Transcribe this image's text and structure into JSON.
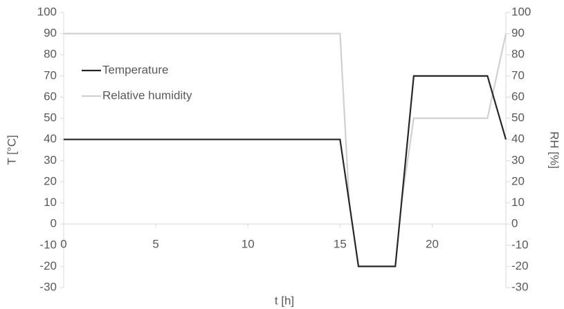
{
  "chart_data": {
    "type": "line",
    "x_label": "t [h]",
    "y_label": "T [°C]",
    "y2_label": "RH [%]",
    "xlim": [
      0,
      24
    ],
    "xticks": [
      0,
      5,
      10,
      15,
      20
    ],
    "ylim": [
      -30,
      100
    ],
    "yticks": [
      -30,
      -20,
      -10,
      0,
      10,
      20,
      30,
      40,
      50,
      60,
      70,
      80,
      90,
      100
    ],
    "y2lim": [
      -30,
      100
    ],
    "y2ticks": [
      -30,
      -20,
      -10,
      0,
      10,
      20,
      30,
      40,
      50,
      60,
      70,
      80,
      90,
      100
    ],
    "legend": "upper left",
    "series": [
      {
        "name": "Temperature",
        "color": "#262626",
        "x": [
          0,
          15,
          16,
          18,
          19,
          23,
          24
        ],
        "values": [
          40,
          40,
          -20,
          -20,
          70,
          70,
          40
        ]
      },
      {
        "name": "Relative humidity",
        "color": "#d0d0d0",
        "axis": "y2",
        "x": [
          0,
          15,
          15.5,
          17,
          18.33,
          19,
          23,
          24
        ],
        "values": [
          90,
          90,
          10,
          null,
          10,
          50,
          50,
          90
        ]
      }
    ]
  }
}
